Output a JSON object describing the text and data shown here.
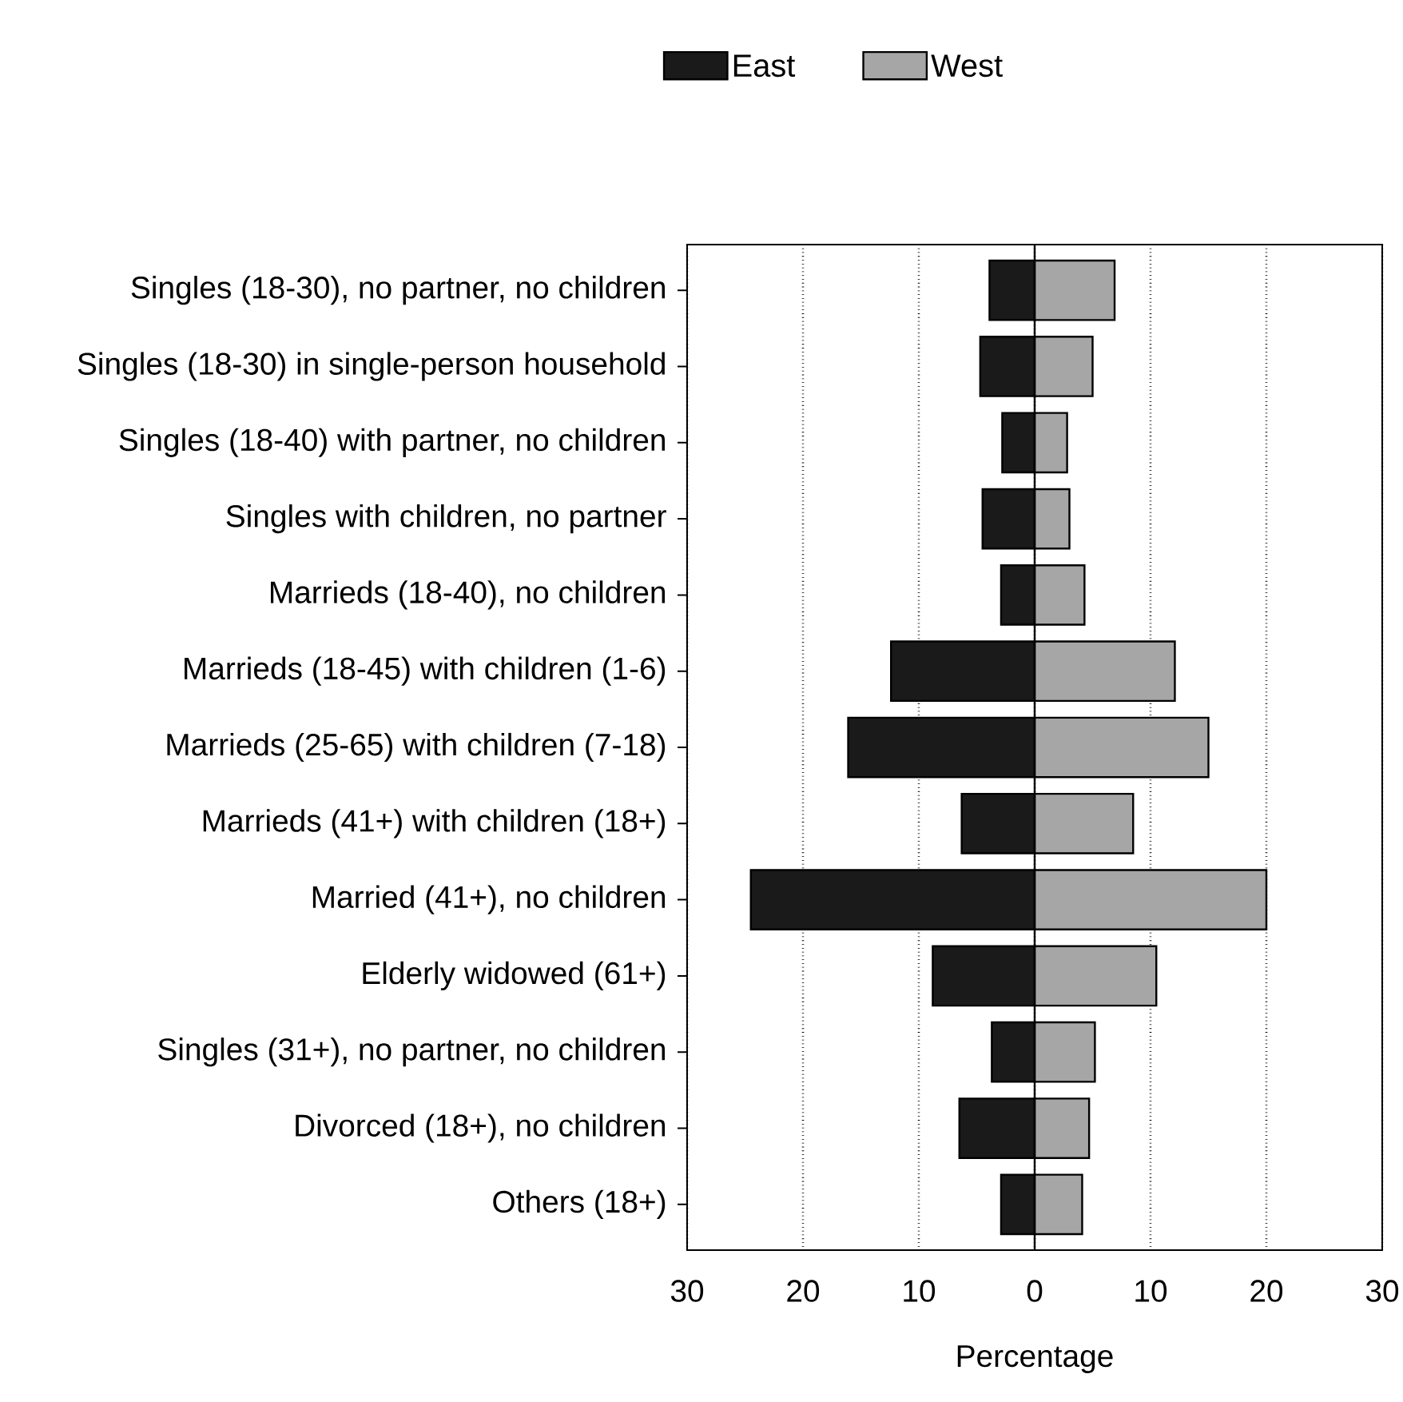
{
  "chart_data": {
    "type": "bar",
    "orientation": "horizontal",
    "xlabel": "Percentage",
    "categories": [
      "Singles (18-30), no partner, no children",
      "Singles (18-30) in single-person household",
      "Singles (18-40) with partner, no children",
      "Singles with children, no partner",
      "Marrieds (18-40), no children",
      "Marrieds (18-45) with children (1-6)",
      "Marrieds (25-65) with children (7-18)",
      "Marrieds (41+) with children (18+)",
      "Married (41+), no children",
      "Elderly widowed (61+)",
      "Singles (31+), no partner, no children",
      "Divorced (18+), no children",
      "Others (18+)"
    ],
    "series": [
      {
        "name": "East",
        "color": "#1a1a1a",
        "values": [
          -3.9,
          -4.7,
          -2.8,
          -4.5,
          -2.9,
          -12.4,
          -16.1,
          -6.3,
          -24.5,
          -8.8,
          -3.7,
          -6.5,
          -2.9
        ]
      },
      {
        "name": "West",
        "color": "#a6a6a6",
        "values": [
          6.9,
          5.0,
          2.8,
          3.0,
          4.3,
          12.1,
          15.0,
          8.5,
          20.0,
          10.5,
          5.2,
          4.7,
          4.1
        ]
      }
    ],
    "xlim": [
      -30,
      30
    ],
    "xticks": [
      {
        "value": -30,
        "label": "30"
      },
      {
        "value": -20,
        "label": "20"
      },
      {
        "value": -10,
        "label": "10"
      },
      0,
      10,
      20,
      30
    ],
    "grid": "x",
    "stacked": true,
    "ref_lines": [
      {
        "axis": "x",
        "value": 0
      }
    ],
    "legend": "top"
  }
}
